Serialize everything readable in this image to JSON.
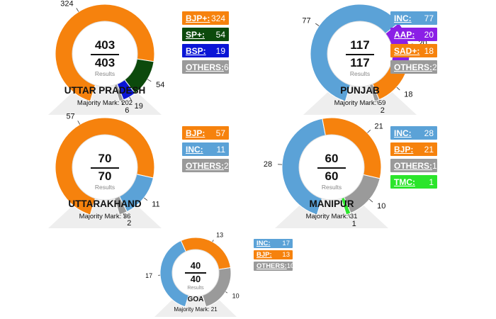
{
  "colors": {
    "bjp": "#f6820d",
    "inc": "#5ba2d7",
    "sp": "#0c4a0c",
    "bsp": "#0a16d6",
    "aap": "#8b1fe6",
    "tmc": "#2be52b",
    "others": "#9a9a9a"
  },
  "chart_data": [
    {
      "type": "pie",
      "state": "UTTAR PRADESH",
      "total": "403",
      "total_label": "403",
      "results_label": "Results",
      "majority": "Majority Mark: 202",
      "series": [
        {
          "name": "BJP+:",
          "value": 324,
          "color": "#f6820d"
        },
        {
          "name": "SP+:",
          "value": 54,
          "color": "#0c4a0c"
        },
        {
          "name": "BSP:",
          "value": 19,
          "color": "#0a16d6"
        },
        {
          "name": "OTHERS:",
          "value": 6,
          "color": "#9a9a9a"
        }
      ]
    },
    {
      "type": "pie",
      "state": "PUNJAB",
      "total": "117",
      "total_label": "117",
      "results_label": "Results",
      "majority": "Majority Mark: 59",
      "series": [
        {
          "name": "INC:",
          "value": 77,
          "color": "#5ba2d7"
        },
        {
          "name": "AAP:",
          "value": 20,
          "color": "#8b1fe6"
        },
        {
          "name": "SAD+:",
          "value": 18,
          "color": "#f6820d"
        },
        {
          "name": "OTHERS:",
          "value": 2,
          "color": "#9a9a9a"
        }
      ]
    },
    {
      "type": "pie",
      "state": "UTTARAKHAND",
      "total": "70",
      "total_label": "70",
      "results_label": "Results",
      "majority": "Majority Mark: 36",
      "series": [
        {
          "name": "BJP:",
          "value": 57,
          "color": "#f6820d"
        },
        {
          "name": "INC:",
          "value": 11,
          "color": "#5ba2d7"
        },
        {
          "name": "OTHERS:",
          "value": 2,
          "color": "#9a9a9a"
        }
      ]
    },
    {
      "type": "pie",
      "state": "MANIPUR",
      "total": "60",
      "total_label": "60",
      "results_label": "Results",
      "majority": "Majority Mark: 31",
      "series": [
        {
          "name": "INC:",
          "value": 28,
          "color": "#5ba2d7"
        },
        {
          "name": "BJP:",
          "value": 21,
          "color": "#f6820d"
        },
        {
          "name": "OTHERS:",
          "value": 10,
          "color": "#9a9a9a"
        },
        {
          "name": "TMC:",
          "value": 1,
          "color": "#2be52b"
        }
      ]
    },
    {
      "type": "pie",
      "state": "GOA",
      "total": "40",
      "total_label": "40",
      "results_label": "Results",
      "majority": "Majority Mark: 21",
      "series": [
        {
          "name": "INC:",
          "value": 17,
          "color": "#5ba2d7"
        },
        {
          "name": "BJP:",
          "value": 13,
          "color": "#f6820d"
        },
        {
          "name": "OTHERS:",
          "value": 10,
          "color": "#9a9a9a"
        }
      ]
    }
  ]
}
